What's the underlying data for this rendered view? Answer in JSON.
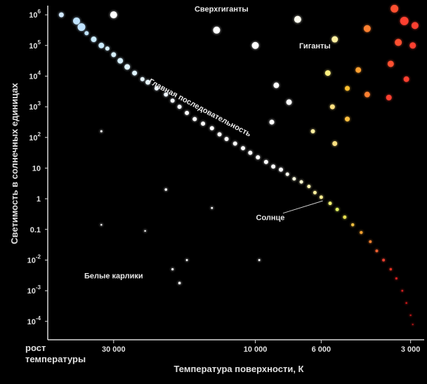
{
  "chart_data": {
    "type": "scatter",
    "title": "",
    "ylabel": "Светимость в солнечных единицах",
    "xlabel": "Температура поверхности, К",
    "x_scale": "log-reversed",
    "y_scale": "log",
    "xlim": [
      50000,
      2700
    ],
    "ylim_exp": [
      -4.6,
      6.3
    ],
    "x_tick_labels": [
      {
        "value": 30000,
        "label": "30 000"
      },
      {
        "value": 10000,
        "label": "10 000"
      },
      {
        "value": 6000,
        "label": "6 000"
      },
      {
        "value": 3000,
        "label": "3 000"
      }
    ],
    "x_axis_left_label": "рост\nтемпературы",
    "y_tick_labels": [
      {
        "exp": 6,
        "base": "10",
        "sup": "6"
      },
      {
        "exp": 5,
        "base": "10",
        "sup": "5"
      },
      {
        "exp": 4,
        "base": "10",
        "sup": "4"
      },
      {
        "exp": 3,
        "base": "10",
        "sup": "3"
      },
      {
        "exp": 2,
        "base": "10",
        "sup": "2"
      },
      {
        "exp": 1,
        "base": "10",
        "sup": ""
      },
      {
        "exp": 0,
        "base": "1",
        "sup": ""
      },
      {
        "exp": -1,
        "base": "0.1",
        "sup": ""
      },
      {
        "exp": -2,
        "base": "10",
        "sup": "-2"
      },
      {
        "exp": -3,
        "base": "10",
        "sup": "-3"
      },
      {
        "exp": -4,
        "base": "10",
        "sup": "-4"
      }
    ],
    "annotations": [
      {
        "text": "Сверхгиганты",
        "x": 13000,
        "y_exp": 6.1
      },
      {
        "text": "Гиганты",
        "x": 6300,
        "y_exp": 4.9
      },
      {
        "text": "Главная последовательность",
        "x": 15500,
        "y_exp": 2.9,
        "angle": 28
      },
      {
        "text": "Солнце",
        "x": 8900,
        "y_exp": -0.7
      },
      {
        "text": "Белые карлики",
        "x": 30000,
        "y_exp": -2.6
      }
    ],
    "sun": {
      "x": 5800,
      "y_exp": 0
    },
    "series": [
      {
        "points": [
          {
            "x": 45000,
            "y_exp": 6.0,
            "c": "#cfe8ff",
            "s": 3.5
          },
          {
            "x": 40000,
            "y_exp": 5.8,
            "c": "#bfe3ff",
            "s": 5
          },
          {
            "x": 38500,
            "y_exp": 5.6,
            "c": "#bfe3ff",
            "s": 5.5
          },
          {
            "x": 37000,
            "y_exp": 5.4,
            "c": "#bfe3ff",
            "s": 3
          },
          {
            "x": 35000,
            "y_exp": 5.2,
            "c": "#c9ebff",
            "s": 4
          },
          {
            "x": 33000,
            "y_exp": 5.0,
            "c": "#c9ebff",
            "s": 4
          },
          {
            "x": 31500,
            "y_exp": 4.9,
            "c": "#d6f0ff",
            "s": 3
          },
          {
            "x": 30000,
            "y_exp": 4.7,
            "c": "#d6f0ff",
            "s": 3.5
          },
          {
            "x": 28500,
            "y_exp": 4.5,
            "c": "#d6f0ff",
            "s": 4
          },
          {
            "x": 27000,
            "y_exp": 4.3,
            "c": "#dff4ff",
            "s": 4
          },
          {
            "x": 25500,
            "y_exp": 4.1,
            "c": "#dff4ff",
            "s": 3.5
          },
          {
            "x": 24000,
            "y_exp": 3.9,
            "c": "#e6f6ff",
            "s": 3
          },
          {
            "x": 23000,
            "y_exp": 3.8,
            "c": "#e6f6ff",
            "s": 3.5
          },
          {
            "x": 21500,
            "y_exp": 3.6,
            "c": "#eef8ff",
            "s": 3
          },
          {
            "x": 20000,
            "y_exp": 3.4,
            "c": "#eef8ff",
            "s": 3
          },
          {
            "x": 19000,
            "y_exp": 3.2,
            "c": "#f2f8ff",
            "s": 3
          },
          {
            "x": 18000,
            "y_exp": 3.0,
            "c": "#f2f8ff",
            "s": 3
          },
          {
            "x": 17000,
            "y_exp": 2.8,
            "c": "#ffffff",
            "s": 3
          },
          {
            "x": 16000,
            "y_exp": 2.6,
            "c": "#ffffff",
            "s": 3
          },
          {
            "x": 15000,
            "y_exp": 2.45,
            "c": "#ffffff",
            "s": 3
          },
          {
            "x": 14000,
            "y_exp": 2.3,
            "c": "#ffffff",
            "s": 3
          },
          {
            "x": 13200,
            "y_exp": 2.1,
            "c": "#ffffff",
            "s": 3
          },
          {
            "x": 12500,
            "y_exp": 1.95,
            "c": "#ffffff",
            "s": 3
          },
          {
            "x": 11700,
            "y_exp": 1.8,
            "c": "#ffffff",
            "s": 3
          },
          {
            "x": 11000,
            "y_exp": 1.65,
            "c": "#ffffff",
            "s": 3
          },
          {
            "x": 10400,
            "y_exp": 1.5,
            "c": "#ffffff",
            "s": 3
          },
          {
            "x": 9800,
            "y_exp": 1.35,
            "c": "#ffffff",
            "s": 3
          },
          {
            "x": 9200,
            "y_exp": 1.2,
            "c": "#ffffff",
            "s": 3
          },
          {
            "x": 8700,
            "y_exp": 1.05,
            "c": "#ffffff",
            "s": 3
          },
          {
            "x": 8200,
            "y_exp": 0.95,
            "c": "#ffffff",
            "s": 3
          },
          {
            "x": 7800,
            "y_exp": 0.8,
            "c": "#fffff0",
            "s": 2.5
          },
          {
            "x": 7400,
            "y_exp": 0.65,
            "c": "#ffffe0",
            "s": 2.5
          },
          {
            "x": 7000,
            "y_exp": 0.55,
            "c": "#fffad0",
            "s": 2.5
          },
          {
            "x": 6600,
            "y_exp": 0.4,
            "c": "#fff6b0",
            "s": 2.5
          },
          {
            "x": 6300,
            "y_exp": 0.2,
            "c": "#fff2a0",
            "s": 2.5
          },
          {
            "x": 6000,
            "y_exp": 0.05,
            "c": "#ffee90",
            "s": 2.5
          },
          {
            "x": 5600,
            "y_exp": -0.15,
            "c": "#f0f070",
            "s": 2.5
          },
          {
            "x": 5300,
            "y_exp": -0.35,
            "c": "#e0f060",
            "s": 2.5
          },
          {
            "x": 5000,
            "y_exp": -0.6,
            "c": "#e8e050",
            "s": 2.5
          },
          {
            "x": 4700,
            "y_exp": -0.85,
            "c": "#f0c040",
            "s": 2.2
          },
          {
            "x": 4400,
            "y_exp": -1.1,
            "c": "#f0a030",
            "s": 2.2
          },
          {
            "x": 4100,
            "y_exp": -1.4,
            "c": "#f08030",
            "s": 2
          },
          {
            "x": 3900,
            "y_exp": -1.7,
            "c": "#f06030",
            "s": 2
          },
          {
            "x": 3700,
            "y_exp": -2.0,
            "c": "#e84030",
            "s": 2
          },
          {
            "x": 3500,
            "y_exp": -2.3,
            "c": "#e03020",
            "s": 1.8
          },
          {
            "x": 3350,
            "y_exp": -2.6,
            "c": "#d82020",
            "s": 1.6
          },
          {
            "x": 3200,
            "y_exp": -3.0,
            "c": "#d02020",
            "s": 1.4
          },
          {
            "x": 3100,
            "y_exp": -3.4,
            "c": "#c81818",
            "s": 1.3
          },
          {
            "x": 3000,
            "y_exp": -3.8,
            "c": "#c01818",
            "s": 1.2
          },
          {
            "x": 2950,
            "y_exp": -4.1,
            "c": "#b81818",
            "s": 1.1
          }
        ]
      },
      {
        "points": [
          {
            "x": 30000,
            "y_exp": 6.0,
            "c": "#ffffff",
            "s": 5
          },
          {
            "x": 13500,
            "y_exp": 5.5,
            "c": "#ffffff",
            "s": 5
          },
          {
            "x": 10000,
            "y_exp": 5.0,
            "c": "#ffffff",
            "s": 5
          },
          {
            "x": 7200,
            "y_exp": 5.85,
            "c": "#fffef0",
            "s": 5
          },
          {
            "x": 5400,
            "y_exp": 5.2,
            "c": "#fff0a0",
            "s": 4.5
          },
          {
            "x": 4200,
            "y_exp": 5.55,
            "c": "#ff8030",
            "s": 5
          },
          {
            "x": 3400,
            "y_exp": 6.2,
            "c": "#ff5030",
            "s": 5.5
          },
          {
            "x": 3150,
            "y_exp": 5.8,
            "c": "#ff4030",
            "s": 6
          },
          {
            "x": 2900,
            "y_exp": 5.65,
            "c": "#ff4030",
            "s": 5
          },
          {
            "x": 3300,
            "y_exp": 5.1,
            "c": "#ff5030",
            "s": 5
          },
          {
            "x": 2950,
            "y_exp": 5.0,
            "c": "#ff4030",
            "s": 4.5
          },
          {
            "x": 3500,
            "y_exp": 4.4,
            "c": "#ff5030",
            "s": 4.5
          },
          {
            "x": 3100,
            "y_exp": 3.9,
            "c": "#ff4030",
            "s": 4
          },
          {
            "x": 3550,
            "y_exp": 3.3,
            "c": "#ff4030",
            "s": 4
          },
          {
            "x": 4200,
            "y_exp": 3.4,
            "c": "#ff8030",
            "s": 4
          },
          {
            "x": 4500,
            "y_exp": 4.2,
            "c": "#ffa030",
            "s": 4
          },
          {
            "x": 4900,
            "y_exp": 3.6,
            "c": "#ffc030",
            "s": 3.5
          },
          {
            "x": 5700,
            "y_exp": 4.1,
            "c": "#fff080",
            "s": 4
          },
          {
            "x": 8500,
            "y_exp": 3.7,
            "c": "#ffffff",
            "s": 4
          },
          {
            "x": 7700,
            "y_exp": 3.15,
            "c": "#ffffff",
            "s": 4
          },
          {
            "x": 5500,
            "y_exp": 3.0,
            "c": "#ffe080",
            "s": 3.5
          },
          {
            "x": 4900,
            "y_exp": 2.6,
            "c": "#ffc040",
            "s": 3.5
          },
          {
            "x": 8800,
            "y_exp": 2.5,
            "c": "#ffffff",
            "s": 3.5
          },
          {
            "x": 6400,
            "y_exp": 2.2,
            "c": "#fff0a0",
            "s": 3
          },
          {
            "x": 5400,
            "y_exp": 1.8,
            "c": "#ffe080",
            "s": 3.5
          }
        ]
      },
      {
        "points": [
          {
            "x": 33000,
            "y_exp": 2.2,
            "c": "#ffffff",
            "s": 1.5
          },
          {
            "x": 20000,
            "y_exp": 0.3,
            "c": "#ffffff",
            "s": 1.8
          },
          {
            "x": 14000,
            "y_exp": -0.3,
            "c": "#ffffff",
            "s": 1.4
          },
          {
            "x": 33000,
            "y_exp": -0.85,
            "c": "#ffffff",
            "s": 1.2
          },
          {
            "x": 23500,
            "y_exp": -1.05,
            "c": "#ffffff",
            "s": 1.2
          },
          {
            "x": 17000,
            "y_exp": -2.0,
            "c": "#ffffff",
            "s": 1.4
          },
          {
            "x": 9700,
            "y_exp": -2.0,
            "c": "#ffffff",
            "s": 1.4
          },
          {
            "x": 19000,
            "y_exp": -2.3,
            "c": "#ffffff",
            "s": 1.6
          },
          {
            "x": 18000,
            "y_exp": -2.75,
            "c": "#ffffff",
            "s": 1.8
          }
        ]
      }
    ]
  }
}
